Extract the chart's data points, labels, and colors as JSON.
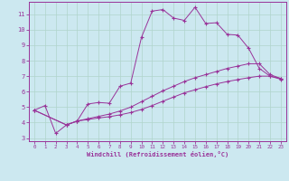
{
  "xlabel": "Windchill (Refroidissement éolien,°C)",
  "background_color": "#cce8f0",
  "grid_color": "#b0d4cc",
  "line_color": "#993399",
  "spine_color": "#993399",
  "xlim": [
    -0.5,
    23.5
  ],
  "ylim": [
    2.8,
    11.8
  ],
  "xticks": [
    0,
    1,
    2,
    3,
    4,
    5,
    6,
    7,
    8,
    9,
    10,
    11,
    12,
    13,
    14,
    15,
    16,
    17,
    18,
    19,
    20,
    21,
    22,
    23
  ],
  "yticks": [
    3,
    4,
    5,
    6,
    7,
    8,
    9,
    10,
    11
  ],
  "series": [
    {
      "x": [
        0,
        1,
        2,
        3,
        4,
        5,
        6,
        7,
        8,
        9,
        10,
        11,
        12,
        13,
        14,
        15,
        16,
        17,
        18,
        19,
        20,
        21,
        22,
        23
      ],
      "y": [
        4.8,
        5.1,
        3.3,
        3.85,
        4.1,
        5.2,
        5.3,
        5.25,
        6.35,
        6.55,
        9.5,
        11.2,
        11.3,
        10.75,
        10.6,
        11.45,
        10.4,
        10.45,
        9.7,
        9.65,
        8.8,
        7.5,
        7.0,
        6.8
      ]
    },
    {
      "x": [
        0,
        3,
        4,
        5,
        6,
        7,
        8,
        9,
        10,
        11,
        12,
        13,
        14,
        15,
        16,
        17,
        18,
        19,
        20,
        21,
        22,
        23
      ],
      "y": [
        4.8,
        3.85,
        4.1,
        4.25,
        4.4,
        4.55,
        4.75,
        5.0,
        5.35,
        5.7,
        6.05,
        6.35,
        6.65,
        6.9,
        7.1,
        7.3,
        7.5,
        7.65,
        7.8,
        7.8,
        7.1,
        6.85
      ]
    },
    {
      "x": [
        0,
        3,
        4,
        5,
        6,
        7,
        8,
        9,
        10,
        11,
        12,
        13,
        14,
        15,
        16,
        17,
        18,
        19,
        20,
        21,
        22,
        23
      ],
      "y": [
        4.8,
        3.85,
        4.1,
        4.2,
        4.3,
        4.38,
        4.5,
        4.65,
        4.85,
        5.1,
        5.38,
        5.65,
        5.92,
        6.12,
        6.32,
        6.5,
        6.65,
        6.78,
        6.9,
        7.0,
        7.0,
        6.85
      ]
    }
  ]
}
